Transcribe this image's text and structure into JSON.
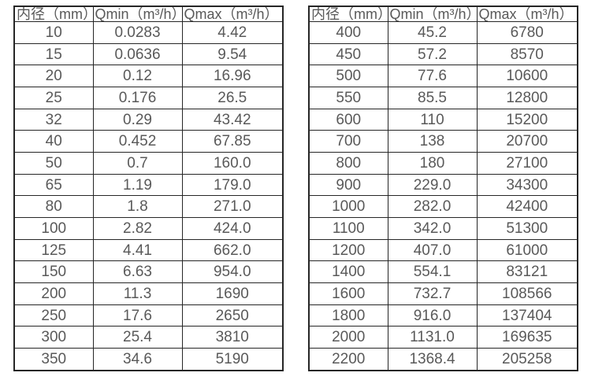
{
  "colors": {
    "background": "#ffffff",
    "border": "#262626",
    "text": "#595959"
  },
  "tables": [
    {
      "name": "flow-spec-table-small-diameters",
      "headers": [
        "内径（mm）",
        "Qmin（m³/h）",
        "Qmax（m³/h）"
      ],
      "rows": [
        [
          "10",
          "0.0283",
          "4.42"
        ],
        [
          "15",
          "0.0636",
          "9.54"
        ],
        [
          "20",
          "0.12",
          "16.96"
        ],
        [
          "25",
          "0.176",
          "26.5"
        ],
        [
          "32",
          "0.29",
          "43.42"
        ],
        [
          "40",
          "0.452",
          "67.85"
        ],
        [
          "50",
          "0.7",
          "160.0"
        ],
        [
          "65",
          "1.19",
          "179.0"
        ],
        [
          "80",
          "1.8",
          "271.0"
        ],
        [
          "100",
          "2.82",
          "424.0"
        ],
        [
          "125",
          "4.41",
          "662.0"
        ],
        [
          "150",
          "6.63",
          "954.0"
        ],
        [
          "200",
          "11.3",
          "1690"
        ],
        [
          "250",
          "17.6",
          "2650"
        ],
        [
          "300",
          "25.4",
          "3810"
        ],
        [
          "350",
          "34.6",
          "5190"
        ]
      ]
    },
    {
      "name": "flow-spec-table-large-diameters",
      "headers": [
        "内径（mm）",
        "Qmin（m³/h）",
        "Qmax（m³/h）"
      ],
      "rows": [
        [
          "400",
          "45.2",
          "6780"
        ],
        [
          "450",
          "57.2",
          "8570"
        ],
        [
          "500",
          "77.6",
          "10600"
        ],
        [
          "550",
          "85.5",
          "12800"
        ],
        [
          "600",
          "110",
          "15200"
        ],
        [
          "700",
          "138",
          "20700"
        ],
        [
          "800",
          "180",
          "27100"
        ],
        [
          "900",
          "229.0",
          "34300"
        ],
        [
          "1000",
          "282.0",
          "42400"
        ],
        [
          "1100",
          "342.0",
          "51300"
        ],
        [
          "1200",
          "407.0",
          "61000"
        ],
        [
          "1400",
          "554.1",
          "83121"
        ],
        [
          "1600",
          "732.7",
          "108566"
        ],
        [
          "1800",
          "916.0",
          "137404"
        ],
        [
          "2000",
          "1131.0",
          "169635"
        ],
        [
          "2200",
          "1368.4",
          "205258"
        ]
      ]
    }
  ]
}
